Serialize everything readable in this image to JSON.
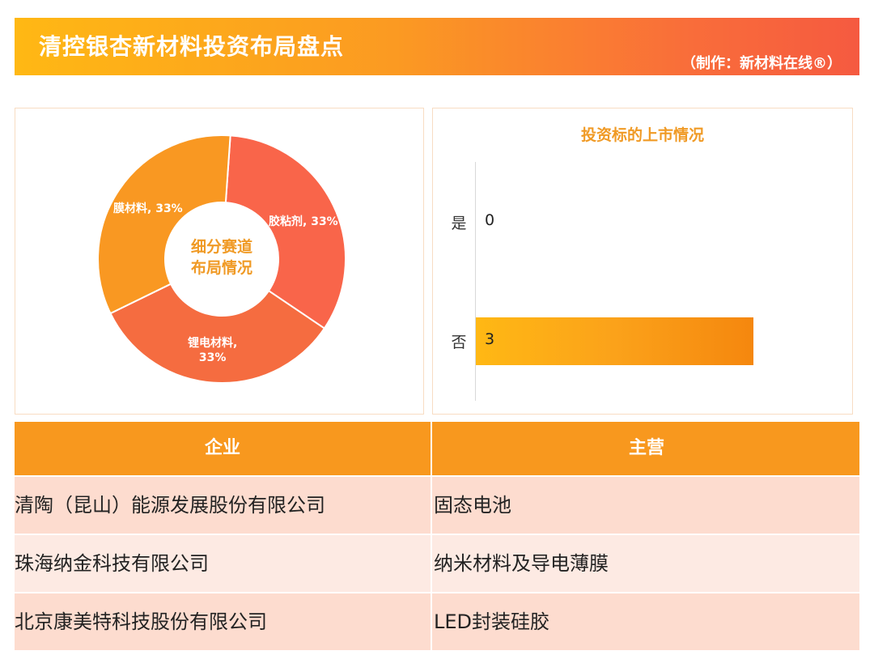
{
  "header": {
    "title": "清控银杏新材料投资布局盘点",
    "credit": "（制作：新材料在线®）"
  },
  "colors": {
    "accent": "#f8981e",
    "banner_start": "#ffb814",
    "banner_end": "#f55a40",
    "row_odd": "#fddccf",
    "row_even": "#fdeae3"
  },
  "chart_data": [
    {
      "type": "pie",
      "style": "donut",
      "center_text": [
        "细分赛道",
        "布局情况"
      ],
      "slices": [
        {
          "label_name": "胶粘剂",
          "label_pct": "33%",
          "value": 33.3,
          "color": "#f9654a"
        },
        {
          "label_name": "锂电材料,",
          "label_pct": "33%",
          "value": 33.3,
          "color": "#f56c40"
        },
        {
          "label_name": "膜材料",
          "label_pct": "33%",
          "value": 33.3,
          "color": "#f99822"
        }
      ]
    },
    {
      "type": "bar",
      "orientation": "horizontal",
      "title": "投资标的上市情况",
      "categories": [
        "是",
        "否"
      ],
      "values": [
        0,
        3
      ],
      "xlim": [
        0,
        3.5
      ]
    }
  ],
  "table": {
    "headers": [
      "企业",
      "主营"
    ],
    "rows": [
      [
        "清陶（昆山）能源发展股份有限公司",
        "固态电池"
      ],
      [
        "珠海纳金科技有限公司",
        "纳米材料及导电薄膜"
      ],
      [
        "北京康美特科技股份有限公司",
        "LED封装硅胶"
      ]
    ]
  }
}
